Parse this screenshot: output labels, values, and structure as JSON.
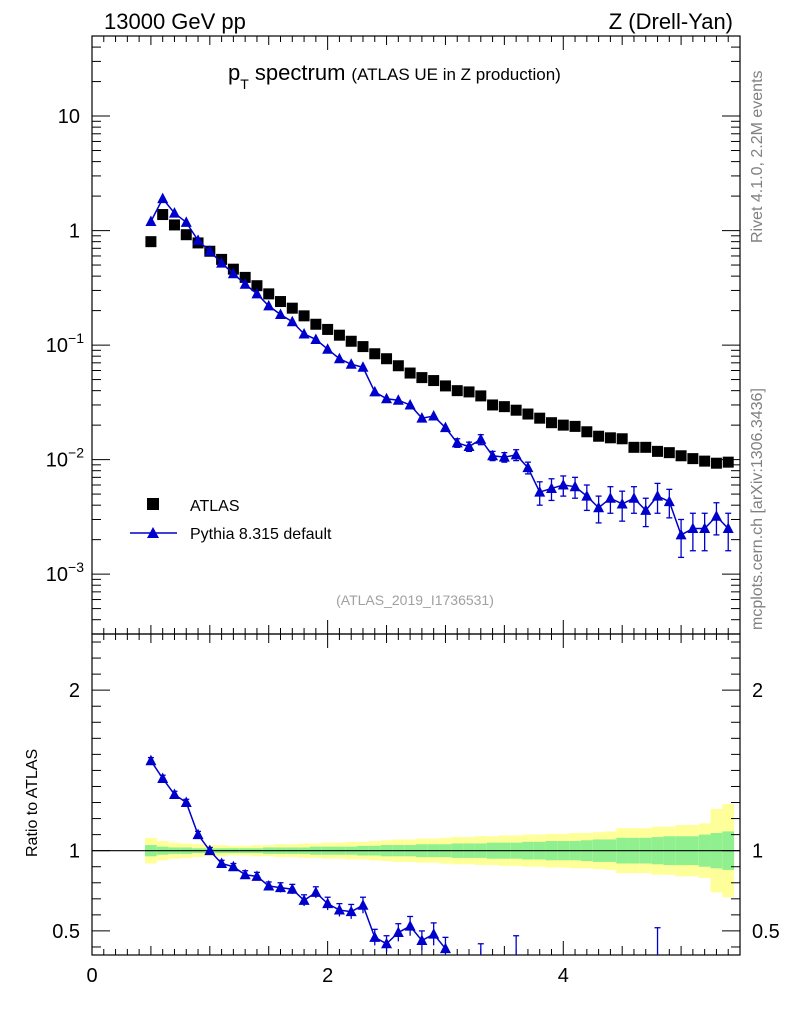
{
  "header": {
    "left": "13000 GeV pp",
    "right": "Z (Drell-Yan)"
  },
  "plot_title": {
    "main": "p",
    "sub": "T",
    "rest": " spectrum",
    "qualifier": "(ATLAS UE in Z production)"
  },
  "side_labels": {
    "rivet": "Rivet 4.1.0,  2.2M events",
    "mcplots": "mcplots.cern.ch [arXiv:1306.3436]"
  },
  "analysis_id": "(ATLAS_2019_I1736531)",
  "colors": {
    "data": "#000000",
    "mc": "#0000cc",
    "band_inner": "#90f090",
    "band_outer": "#ffff99"
  },
  "chart_data": [
    {
      "type": "scatter",
      "panel": "main",
      "title": "pT spectrum (ATLAS UE in Z production)",
      "xlabel": "",
      "ylabel": "",
      "xlim": [
        0,
        5.5
      ],
      "ylim": [
        0.0003,
        50
      ],
      "yscale": "log",
      "y_ticks": [
        {
          "v": 0.001,
          "base": "10",
          "exp": "−3"
        },
        {
          "v": 0.01,
          "base": "10",
          "exp": "−2"
        },
        {
          "v": 0.1,
          "base": "10",
          "exp": "−1"
        },
        {
          "v": 1,
          "base": "1",
          "exp": ""
        },
        {
          "v": 10,
          "base": "10",
          "exp": ""
        }
      ],
      "legend": {
        "position": "middle-left",
        "entries": [
          "ATLAS",
          "Pythia 8.315 default"
        ]
      },
      "series": [
        {
          "name": "ATLAS",
          "marker": "square",
          "x": [
            0.5,
            0.6,
            0.7,
            0.8,
            0.9,
            1.0,
            1.1,
            1.2,
            1.3,
            1.4,
            1.5,
            1.6,
            1.7,
            1.8,
            1.9,
            2.0,
            2.1,
            2.2,
            2.3,
            2.4,
            2.5,
            2.6,
            2.7,
            2.8,
            2.9,
            3.0,
            3.1,
            3.2,
            3.3,
            3.4,
            3.5,
            3.6,
            3.7,
            3.8,
            3.9,
            4.0,
            4.1,
            4.2,
            4.3,
            4.4,
            4.5,
            4.6,
            4.7,
            4.8,
            4.9,
            5.0,
            5.1,
            5.2,
            5.3,
            5.4
          ],
          "y": [
            0.8,
            1.38,
            1.12,
            0.92,
            0.78,
            0.66,
            0.56,
            0.46,
            0.39,
            0.33,
            0.28,
            0.24,
            0.21,
            0.18,
            0.152,
            0.137,
            0.122,
            0.108,
            0.097,
            0.084,
            0.076,
            0.066,
            0.057,
            0.052,
            0.049,
            0.044,
            0.04,
            0.039,
            0.036,
            0.03,
            0.029,
            0.027,
            0.025,
            0.023,
            0.021,
            0.02,
            0.0195,
            0.0175,
            0.016,
            0.0155,
            0.0152,
            0.0128,
            0.0128,
            0.0118,
            0.0115,
            0.0108,
            0.0102,
            0.0097,
            0.0093,
            0.0095
          ]
        },
        {
          "name": "Pythia 8.315 default",
          "marker": "triangle",
          "x": [
            0.5,
            0.6,
            0.7,
            0.8,
            0.9,
            1.0,
            1.1,
            1.2,
            1.3,
            1.4,
            1.5,
            1.6,
            1.7,
            1.8,
            1.9,
            2.0,
            2.1,
            2.2,
            2.3,
            2.4,
            2.5,
            2.6,
            2.7,
            2.8,
            2.9,
            3.0,
            3.1,
            3.2,
            3.3,
            3.4,
            3.5,
            3.6,
            3.7,
            3.8,
            3.9,
            4.0,
            4.1,
            4.2,
            4.3,
            4.4,
            4.5,
            4.6,
            4.7,
            4.8,
            4.9,
            5.0,
            5.1,
            5.2,
            5.3,
            5.4
          ],
          "y": [
            1.2,
            1.9,
            1.42,
            1.18,
            0.82,
            0.66,
            0.52,
            0.42,
            0.34,
            0.28,
            0.22,
            0.185,
            0.16,
            0.125,
            0.112,
            0.092,
            0.076,
            0.068,
            0.064,
            0.039,
            0.034,
            0.033,
            0.03,
            0.023,
            0.024,
            0.019,
            0.014,
            0.013,
            0.015,
            0.0108,
            0.0105,
            0.011,
            0.0085,
            0.0052,
            0.0056,
            0.006,
            0.0058,
            0.0048,
            0.0038,
            0.0046,
            0.0041,
            0.0046,
            0.0036,
            0.0048,
            0.0043,
            0.0022,
            0.0025,
            0.0025,
            0.0032,
            0.0025
          ],
          "yerr": [
            0.03,
            0.05,
            0.04,
            0.03,
            0.02,
            0.015,
            0.012,
            0.01,
            0.008,
            0.007,
            0.006,
            0.005,
            0.004,
            0.004,
            0.004,
            0.003,
            0.003,
            0.003,
            0.003,
            0.002,
            0.002,
            0.002,
            0.002,
            0.0015,
            0.0015,
            0.0015,
            0.0012,
            0.0012,
            0.0015,
            0.001,
            0.001,
            0.0012,
            0.001,
            0.0012,
            0.0012,
            0.0012,
            0.0012,
            0.0012,
            0.001,
            0.0012,
            0.0012,
            0.0012,
            0.001,
            0.0014,
            0.0012,
            0.0008,
            0.0009,
            0.0009,
            0.001,
            0.0009
          ]
        }
      ]
    },
    {
      "type": "scatter",
      "panel": "ratio",
      "title": "",
      "xlabel": "",
      "ylabel": "Ratio to ATLAS",
      "xlim": [
        0,
        5.5
      ],
      "ylim": [
        0.35,
        2.35
      ],
      "x_ticks": [
        0,
        2,
        4
      ],
      "y_ticks": [
        0.5,
        1,
        2
      ],
      "reference_line": 1,
      "band_edges": [
        0.45,
        0.55,
        0.65,
        0.75,
        0.85,
        0.95,
        1.05,
        1.15,
        1.25,
        1.35,
        1.45,
        1.55,
        1.65,
        1.75,
        1.85,
        1.95,
        2.05,
        2.15,
        2.25,
        2.35,
        2.45,
        2.55,
        2.65,
        2.75,
        2.85,
        2.95,
        3.05,
        3.15,
        3.25,
        3.35,
        3.45,
        3.55,
        3.65,
        3.75,
        3.85,
        3.95,
        4.05,
        4.15,
        4.25,
        4.35,
        4.45,
        4.55,
        4.65,
        4.75,
        4.85,
        4.95,
        5.05,
        5.15,
        5.25,
        5.35,
        5.45
      ],
      "band_inner_halfwidth": [
        0.035,
        0.025,
        0.02,
        0.02,
        0.015,
        0.015,
        0.015,
        0.015,
        0.015,
        0.015,
        0.02,
        0.02,
        0.02,
        0.02,
        0.025,
        0.025,
        0.025,
        0.025,
        0.03,
        0.03,
        0.035,
        0.035,
        0.035,
        0.04,
        0.04,
        0.04,
        0.045,
        0.045,
        0.045,
        0.05,
        0.05,
        0.05,
        0.055,
        0.055,
        0.06,
        0.06,
        0.06,
        0.065,
        0.07,
        0.07,
        0.08,
        0.08,
        0.08,
        0.085,
        0.09,
        0.09,
        0.09,
        0.1,
        0.11,
        0.12
      ],
      "band_outer_halfwidth": [
        0.08,
        0.06,
        0.05,
        0.045,
        0.04,
        0.035,
        0.035,
        0.03,
        0.03,
        0.035,
        0.035,
        0.04,
        0.04,
        0.045,
        0.045,
        0.05,
        0.05,
        0.055,
        0.055,
        0.06,
        0.065,
        0.07,
        0.07,
        0.075,
        0.075,
        0.08,
        0.085,
        0.085,
        0.09,
        0.09,
        0.095,
        0.095,
        0.1,
        0.1,
        0.105,
        0.105,
        0.11,
        0.11,
        0.115,
        0.12,
        0.14,
        0.14,
        0.14,
        0.15,
        0.15,
        0.16,
        0.16,
        0.17,
        0.26,
        0.29
      ],
      "series": [
        {
          "name": "Pythia 8.315 default / ATLAS",
          "marker": "triangle",
          "x": [
            0.5,
            0.6,
            0.7,
            0.8,
            0.9,
            1.0,
            1.1,
            1.2,
            1.3,
            1.4,
            1.5,
            1.6,
            1.7,
            1.8,
            1.9,
            2.0,
            2.1,
            2.2,
            2.3,
            2.4,
            2.5,
            2.6,
            2.7,
            2.8,
            2.9,
            3.0,
            3.3,
            3.6,
            4.8
          ],
          "y": [
            1.56,
            1.45,
            1.35,
            1.3,
            1.1,
            1.0,
            0.92,
            0.9,
            0.85,
            0.84,
            0.78,
            0.77,
            0.76,
            0.69,
            0.74,
            0.67,
            0.63,
            0.62,
            0.66,
            0.46,
            0.42,
            0.49,
            0.53,
            0.44,
            0.48,
            0.39,
            0.34,
            0.36,
            0.34
          ],
          "yerr": [
            0.02,
            0.02,
            0.02,
            0.02,
            0.02,
            0.02,
            0.02,
            0.02,
            0.025,
            0.025,
            0.025,
            0.03,
            0.03,
            0.035,
            0.035,
            0.04,
            0.04,
            0.045,
            0.05,
            0.05,
            0.05,
            0.055,
            0.06,
            0.06,
            0.07,
            0.07,
            0.08,
            0.11,
            0.18
          ]
        }
      ]
    }
  ]
}
